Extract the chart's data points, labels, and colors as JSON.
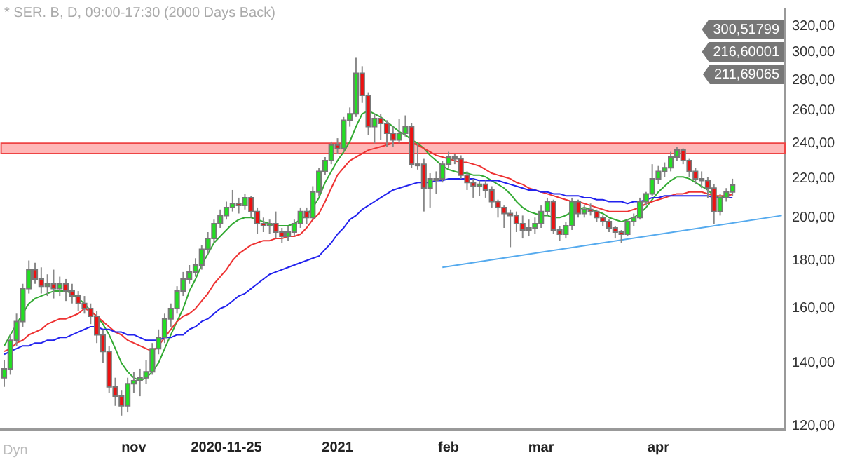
{
  "chart_data": {
    "type": "candlestick",
    "title": "* SER. B, D, 09:00-17:30 (2000 Days Back)",
    "categories": [
      null,
      null,
      null,
      null,
      null,
      null,
      null,
      null,
      null,
      null,
      null,
      null,
      null,
      null,
      null,
      null,
      null,
      null,
      null,
      null,
      null,
      "nov",
      null,
      null,
      null,
      null,
      null,
      null,
      null,
      null,
      null,
      null,
      null,
      null,
      null,
      null,
      "2020-11-25",
      null,
      null,
      null,
      null,
      null,
      null,
      null,
      null,
      null,
      null,
      null,
      null,
      null,
      null,
      null,
      null,
      null,
      "2021",
      null,
      null,
      null,
      null,
      null,
      null,
      null,
      null,
      null,
      null,
      null,
      null,
      null,
      null,
      null,
      null,
      null,
      "feb",
      null,
      null,
      null,
      null,
      null,
      null,
      null,
      null,
      null,
      null,
      null,
      null,
      null,
      null,
      "mar",
      null,
      null,
      null,
      null,
      null,
      null,
      null,
      null,
      null,
      null,
      null,
      null,
      null,
      null,
      null,
      null,
      null,
      null,
      "apr",
      null,
      null,
      null,
      null,
      null,
      null,
      null,
      null,
      null,
      null,
      null,
      null,
      null,
      null,
      null,
      null,
      null,
      null,
      null,
      null
    ],
    "ohlc": [
      [
        135,
        141,
        132,
        138
      ],
      [
        138,
        150,
        136,
        148
      ],
      [
        148,
        158,
        146,
        155
      ],
      [
        155,
        170,
        153,
        168
      ],
      [
        168,
        180,
        166,
        176
      ],
      [
        176,
        179,
        170,
        172
      ],
      [
        172,
        177,
        166,
        169
      ],
      [
        169,
        174,
        165,
        170
      ],
      [
        170,
        176,
        164,
        168
      ],
      [
        168,
        173,
        165,
        170
      ],
      [
        170,
        172,
        163,
        167
      ],
      [
        167,
        170,
        162,
        165
      ],
      [
        165,
        167,
        159,
        162
      ],
      [
        162,
        165,
        158,
        160
      ],
      [
        160,
        162,
        154,
        157
      ],
      [
        157,
        159,
        147,
        150
      ],
      [
        150,
        152,
        140,
        144
      ],
      [
        144,
        146,
        130,
        132
      ],
      [
        132,
        135,
        126,
        129
      ],
      [
        129,
        131,
        123,
        126
      ],
      [
        126,
        135,
        124,
        133
      ],
      [
        133,
        137,
        130,
        134
      ],
      [
        134,
        138,
        129,
        135
      ],
      [
        135,
        141,
        133,
        137
      ],
      [
        137,
        147,
        136,
        145
      ],
      [
        145,
        152,
        143,
        149
      ],
      [
        149,
        158,
        147,
        156
      ],
      [
        156,
        162,
        153,
        160
      ],
      [
        160,
        169,
        158,
        167
      ],
      [
        167,
        175,
        165,
        172
      ],
      [
        172,
        178,
        170,
        175
      ],
      [
        175,
        181,
        173,
        178
      ],
      [
        178,
        187,
        176,
        185
      ],
      [
        185,
        193,
        183,
        190
      ],
      [
        190,
        199,
        188,
        197
      ],
      [
        197,
        204,
        195,
        201
      ],
      [
        201,
        208,
        199,
        205
      ],
      [
        205,
        214,
        203,
        207
      ],
      [
        207,
        210,
        202,
        206
      ],
      [
        206,
        212,
        204,
        210
      ],
      [
        210,
        211,
        200,
        203
      ],
      [
        203,
        205,
        192,
        197
      ],
      [
        197,
        200,
        193,
        196
      ],
      [
        196,
        199,
        192,
        197
      ],
      [
        197,
        203,
        190,
        193
      ],
      [
        193,
        195,
        188,
        191
      ],
      [
        191,
        196,
        189,
        193
      ],
      [
        193,
        199,
        191,
        197
      ],
      [
        197,
        205,
        195,
        203
      ],
      [
        203,
        205,
        197,
        200
      ],
      [
        200,
        216,
        199,
        213
      ],
      [
        213,
        226,
        211,
        224
      ],
      [
        224,
        232,
        222,
        230
      ],
      [
        230,
        241,
        228,
        239
      ],
      [
        239,
        243,
        234,
        237
      ],
      [
        237,
        256,
        235,
        254
      ],
      [
        254,
        262,
        250,
        258
      ],
      [
        258,
        296,
        256,
        285
      ],
      [
        285,
        290,
        265,
        270
      ],
      [
        270,
        272,
        245,
        250
      ],
      [
        250,
        258,
        240,
        255
      ],
      [
        255,
        258,
        242,
        252
      ],
      [
        252,
        254,
        238,
        246
      ],
      [
        246,
        250,
        238,
        242
      ],
      [
        242,
        255,
        240,
        246
      ],
      [
        246,
        257,
        244,
        250
      ],
      [
        250,
        252,
        226,
        228
      ],
      [
        228,
        240,
        225,
        228
      ],
      [
        228,
        231,
        203,
        215
      ],
      [
        215,
        223,
        205,
        220
      ],
      [
        220,
        224,
        212,
        220
      ],
      [
        220,
        230,
        218,
        228
      ],
      [
        228,
        235,
        226,
        232
      ],
      [
        232,
        234,
        228,
        231
      ],
      [
        231,
        233,
        220,
        222
      ],
      [
        222,
        224,
        214,
        218
      ],
      [
        218,
        220,
        210,
        216
      ],
      [
        216,
        219,
        211,
        217
      ],
      [
        217,
        219,
        210,
        214
      ],
      [
        214,
        216,
        205,
        208
      ],
      [
        208,
        209,
        200,
        205
      ],
      [
        205,
        206,
        195,
        202
      ],
      [
        202,
        204,
        186,
        201
      ],
      [
        201,
        203,
        193,
        197
      ],
      [
        197,
        201,
        190,
        194
      ],
      [
        194,
        199,
        191,
        195
      ],
      [
        195,
        200,
        192,
        197
      ],
      [
        197,
        206,
        195,
        203
      ],
      [
        203,
        210,
        201,
        208
      ],
      [
        208,
        209,
        192,
        194
      ],
      [
        194,
        196,
        189,
        192
      ],
      [
        192,
        198,
        190,
        196
      ],
      [
        196,
        210,
        194,
        208
      ],
      [
        208,
        209,
        200,
        202
      ],
      [
        202,
        206,
        200,
        204
      ],
      [
        204,
        207,
        201,
        203
      ],
      [
        203,
        204,
        198,
        200
      ],
      [
        200,
        201,
        196,
        198
      ],
      [
        198,
        199,
        193,
        195
      ],
      [
        195,
        196,
        190,
        193
      ],
      [
        193,
        194,
        188,
        192
      ],
      [
        192,
        199,
        191,
        198
      ],
      [
        198,
        202,
        196,
        200
      ],
      [
        200,
        210,
        199,
        208
      ],
      [
        208,
        213,
        206,
        212
      ],
      [
        212,
        228,
        211,
        220
      ],
      [
        220,
        227,
        217,
        224
      ],
      [
        224,
        229,
        221,
        226
      ],
      [
        226,
        235,
        224,
        232
      ],
      [
        232,
        238,
        230,
        236
      ],
      [
        236,
        237,
        228,
        230
      ],
      [
        230,
        231,
        221,
        224
      ],
      [
        224,
        226,
        217,
        220
      ],
      [
        220,
        224,
        215,
        219
      ],
      [
        219,
        221,
        210,
        215
      ],
      [
        215,
        217,
        197,
        203
      ],
      [
        203,
        212,
        201,
        210
      ],
      [
        210,
        215,
        208,
        213
      ],
      [
        213,
        220,
        211,
        216.6
      ],
      null,
      null,
      null,
      null,
      null,
      null,
      null,
      null
    ],
    "series": [
      {
        "type": "line",
        "color": "#2222ee",
        "values": [
          143,
          144,
          145,
          146,
          146,
          147,
          147,
          148,
          148,
          149,
          149,
          150,
          151,
          152,
          153,
          153,
          152,
          152,
          151,
          151,
          150,
          150,
          149,
          148,
          148,
          148,
          149,
          149,
          150,
          150,
          152,
          153,
          155,
          156,
          158,
          160,
          161,
          163,
          165,
          166,
          168,
          170,
          172,
          174,
          175,
          176,
          177,
          178,
          179,
          180,
          181,
          182,
          185,
          188,
          192,
          195,
          199,
          201,
          204,
          206,
          208,
          210,
          212,
          214,
          215,
          216,
          217,
          218,
          218,
          218,
          219,
          219,
          220,
          220,
          220,
          220,
          220,
          219,
          219,
          219,
          219,
          218,
          217,
          216,
          215,
          214,
          214,
          213,
          213,
          212,
          212,
          211,
          211,
          211,
          210,
          210,
          209,
          209,
          208,
          208,
          208,
          207,
          208,
          208,
          209,
          210,
          210,
          211,
          211,
          211,
          211,
          211,
          211,
          211,
          211,
          210,
          210,
          210,
          210,
          null,
          null,
          null,
          null,
          null,
          null,
          null,
          null
        ]
      },
      {
        "type": "line",
        "color": "#ee3333",
        "values": [
          144,
          145,
          147,
          148,
          150,
          151,
          152,
          154,
          155,
          156,
          156,
          157,
          158,
          160,
          159,
          157,
          155,
          153,
          151,
          150,
          148,
          147,
          146,
          145,
          144,
          146,
          149,
          152,
          155,
          157,
          158,
          160,
          163,
          166,
          170,
          173,
          176,
          180,
          183,
          185,
          187,
          188,
          189,
          189,
          190,
          190,
          191,
          191,
          192,
          195,
          199,
          202,
          208,
          215,
          222,
          226,
          230,
          232,
          234,
          236,
          237,
          238,
          239,
          240,
          240,
          240,
          240,
          239,
          237,
          235,
          233,
          232,
          231,
          230,
          229,
          229,
          228,
          227,
          225,
          223,
          222,
          221,
          220,
          218,
          217,
          215,
          214,
          213,
          212,
          211,
          210,
          209,
          208,
          208,
          207,
          206,
          205,
          204,
          203,
          203,
          203,
          203,
          204,
          205,
          207,
          208,
          209,
          210,
          211,
          212,
          212,
          213,
          213,
          213,
          212,
          211,
          211,
          211,
          211.69,
          null,
          null,
          null,
          null,
          null,
          null,
          null,
          null
        ]
      },
      {
        "type": "line",
        "color": "#33aa33",
        "values": [
          146,
          150,
          154,
          158,
          162,
          164,
          165,
          166,
          167,
          167,
          167,
          166,
          164,
          162,
          159,
          157,
          154,
          150,
          145,
          140,
          137,
          135,
          134,
          135,
          137,
          140,
          145,
          150,
          155,
          160,
          167,
          172,
          178,
          183,
          188,
          191,
          194,
          197,
          199,
          200,
          200,
          199,
          198,
          197,
          196,
          196,
          196,
          197,
          199,
          201,
          205,
          210,
          218,
          224,
          230,
          235,
          241,
          250,
          258,
          260,
          258,
          256,
          253,
          250,
          247,
          245,
          242,
          240,
          237,
          233,
          230,
          227,
          225,
          224,
          223,
          223,
          222,
          222,
          221,
          219,
          217,
          215,
          212,
          208,
          205,
          203,
          202,
          201,
          201,
          200,
          200,
          201,
          203,
          204,
          205,
          204,
          203,
          202,
          200,
          199,
          198,
          199,
          200,
          202,
          205,
          209,
          213,
          216,
          219,
          221,
          221,
          220,
          218,
          216,
          214,
          211,
          210,
          211,
          212,
          null,
          null,
          null,
          null,
          null,
          null,
          null,
          null
        ]
      },
      {
        "type": "line",
        "color": "#55aaee",
        "values": [
          null,
          null,
          null,
          null,
          null,
          null,
          null,
          null,
          null,
          null,
          null,
          null,
          null,
          null,
          null,
          null,
          null,
          null,
          null,
          null,
          null,
          null,
          null,
          null,
          null,
          null,
          null,
          null,
          null,
          null,
          null,
          null,
          null,
          null,
          null,
          null,
          null,
          null,
          null,
          null,
          null,
          null,
          null,
          null,
          null,
          null,
          null,
          null,
          null,
          null,
          null,
          null,
          null,
          null,
          null,
          null,
          null,
          null,
          null,
          null,
          null,
          null,
          null,
          null,
          null,
          null,
          null,
          null,
          null,
          null,
          null,
          177,
          null,
          null,
          null,
          null,
          null,
          null,
          null,
          null,
          null,
          null,
          null,
          null,
          null,
          null,
          null,
          null,
          null,
          null,
          null,
          null,
          null,
          null,
          null,
          null,
          null,
          null,
          null,
          null,
          null,
          null,
          null,
          null,
          null,
          null,
          null,
          null,
          null,
          null,
          null,
          null,
          null,
          null,
          null,
          null,
          null,
          null,
          null,
          null,
          null,
          null,
          null,
          null,
          null,
          null,
          201
        ]
      }
    ],
    "bands": [
      {
        "axis": "y",
        "from": 234,
        "to": 240,
        "color": "#ff9999"
      }
    ],
    "annotations": [
      "Dyn",
      "300,51799",
      "216,60001",
      "211,69065"
    ],
    "ylim": [
      119,
      333
    ],
    "yticks": [
      {
        "value": 120,
        "label": "120,00"
      },
      {
        "value": 140,
        "label": "140,00"
      },
      {
        "value": 160,
        "label": "160,00"
      },
      {
        "value": 180,
        "label": "180,00"
      },
      {
        "value": 200,
        "label": "200,00"
      },
      {
        "value": 220,
        "label": "220,00"
      },
      {
        "value": 240,
        "label": "240,00"
      },
      {
        "value": 260,
        "label": "260,00"
      },
      {
        "value": 280,
        "label": "280,00"
      },
      {
        "value": 300,
        "label": "300,00"
      },
      {
        "value": 320,
        "label": "320,00"
      }
    ],
    "log": true,
    "grid": false,
    "legend": false
  }
}
